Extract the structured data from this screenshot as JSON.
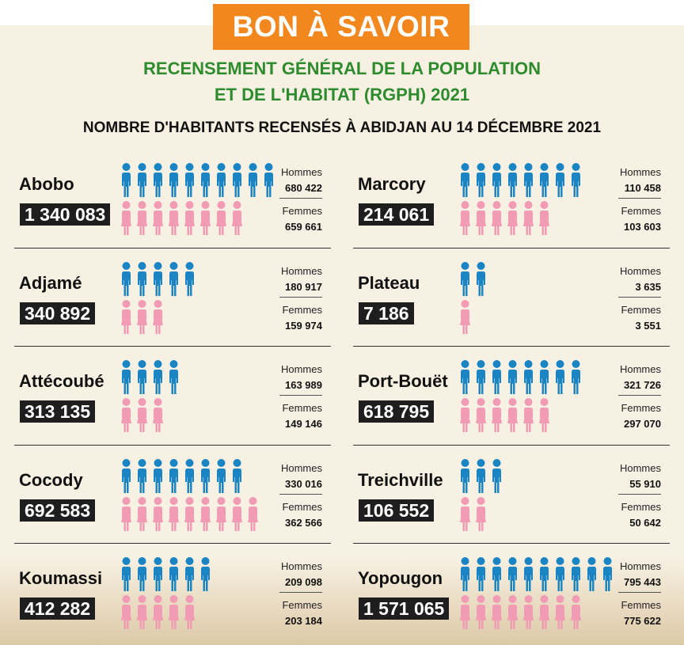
{
  "banner": "BON À SAVOIR",
  "subtitle_line1": "RECENSEMENT GÉNÉRAL DE LA POPULATION",
  "subtitle_line2": "ET DE L'HABITAT (RGPH) 2021",
  "heading": "NOMBRE D'HABITANTS RECENSÉS À ABIDJAN AU 14 DÉCEMBRE 2021",
  "labels": {
    "men": "Hommes",
    "women": "Femmes"
  },
  "colors": {
    "men": "#1b85c4",
    "women": "#f29bb5",
    "banner": "#f2871d",
    "subtitle": "#2e8b2e"
  },
  "icons": {
    "men": "man-icon",
    "women": "woman-icon"
  },
  "districts": [
    {
      "name": "Abobo",
      "total": "1 340 083",
      "men": "680 422",
      "women": "659 661",
      "men_icons": 10,
      "women_icons": 8
    },
    {
      "name": "Adjamé",
      "total": "340 892",
      "men": "180 917",
      "women": "159 974",
      "men_icons": 5,
      "women_icons": 3
    },
    {
      "name": "Attécoubé",
      "total": "313 135",
      "men": "163 989",
      "women": "149 146",
      "men_icons": 4,
      "women_icons": 3
    },
    {
      "name": "Cocody",
      "total": "692 583",
      "men": "330 016",
      "women": "362 566",
      "men_icons": 8,
      "women_icons": 9
    },
    {
      "name": "Koumassi",
      "total": "412 282",
      "men": "209 098",
      "women": "203 184",
      "men_icons": 6,
      "women_icons": 5
    },
    {
      "name": "Marcory",
      "total": "214 061",
      "men": "110 458",
      "women": "103 603",
      "men_icons": 8,
      "women_icons": 6
    },
    {
      "name": "Plateau",
      "total": "7 186",
      "men": "3 635",
      "women": "3 551",
      "men_icons": 2,
      "women_icons": 1
    },
    {
      "name": "Port-Bouët",
      "total": "618 795",
      "men": "321 726",
      "women": "297 070",
      "men_icons": 8,
      "women_icons": 6
    },
    {
      "name": "Treichville",
      "total": "106 552",
      "men": "55 910",
      "women": "50 642",
      "men_icons": 3,
      "women_icons": 2
    },
    {
      "name": "Yopougon",
      "total": "1 571 065",
      "men": "795 443",
      "women": "775 622",
      "men_icons": 10,
      "women_icons": 8
    }
  ]
}
